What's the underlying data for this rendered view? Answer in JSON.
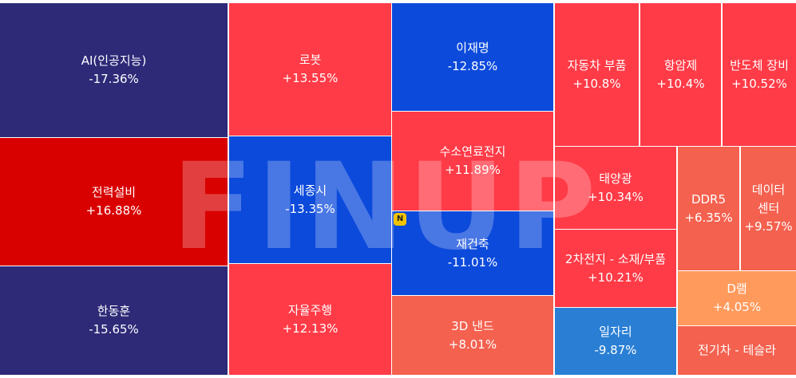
{
  "chart_data": {
    "type": "treemap",
    "categories": [
      "AI(인공지능)",
      "전력설비",
      "한동훈",
      "로봇",
      "세종시",
      "자율주행",
      "이재명",
      "수소연료전지",
      "재건축",
      "3D 낸드",
      "자동차 부품",
      "항암제",
      "반도체 장비",
      "태양광",
      "2차전지 - 소재/부품",
      "일자리",
      "DDR5",
      "데이터 센터",
      "D램",
      "전기차 - 테슬라"
    ],
    "values": [
      -17.36,
      16.88,
      -15.65,
      13.55,
      -13.35,
      12.13,
      -12.85,
      11.89,
      -11.01,
      8.01,
      10.8,
      10.4,
      10.52,
      10.34,
      10.21,
      -9.87,
      6.35,
      9.57,
      4.05,
      null
    ],
    "value_labels": [
      "-17.36%",
      "+16.88%",
      "-15.65%",
      "+13.55%",
      "-13.35%",
      "+12.13%",
      "-12.85%",
      "+11.89%",
      "-11.01%",
      "+8.01%",
      "+10.8%",
      "+10.4%",
      "+10.52%",
      "+10.34%",
      "+10.21%",
      "-9.87%",
      "+6.35%",
      "+9.57%",
      "+4.05%",
      null
    ],
    "colors": [
      "#2e2a78",
      "#d90000",
      "#2e2a78",
      "#ff3b47",
      "#0c4adb",
      "#ff3b47",
      "#0c4adb",
      "#ff3b47",
      "#0c4adb",
      "#f4614f",
      "#ff3b47",
      "#ff3b47",
      "#ff3b47",
      "#ff3b47",
      "#ff3b47",
      "#2a7fd4",
      "#f4614f",
      "#f4614f",
      "#ff9a5c",
      "#f4614f"
    ],
    "watermark": "FINUP",
    "badge": "N"
  }
}
